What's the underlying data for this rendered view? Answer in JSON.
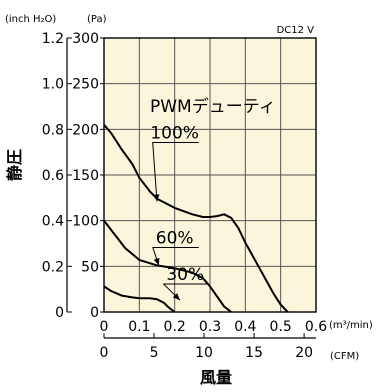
{
  "chart_data": {
    "type": "line",
    "title": "",
    "corner_label": "DC12 V",
    "xlabel": "風量",
    "ylabel": "静圧",
    "x_unit_primary": "(m³/min)",
    "x_unit_secondary": "(CFM)",
    "y_unit_primary": "(Pa)",
    "y_unit_secondary": "(inch H₂O)",
    "xlim": [
      0,
      0.6
    ],
    "ylim": [
      0,
      300
    ],
    "x_ticks_primary": [
      "0",
      "0.1",
      "0.2",
      "0.3",
      "0.4",
      "0.5",
      "0.6"
    ],
    "x_ticks_secondary": [
      "0",
      "5",
      "10",
      "15",
      "20"
    ],
    "y_ticks_primary": [
      "0",
      "50",
      "100",
      "150",
      "200",
      "250",
      "300"
    ],
    "y_ticks_secondary": [
      "0",
      "0.2",
      "0.4",
      "0.6",
      "0.8",
      "1.0",
      "1.2"
    ],
    "grid": true,
    "background_color": "#fbf6db",
    "grid_color": "#555555",
    "annotation_title": "PWMデューティ",
    "series": [
      {
        "name": "100%",
        "x": [
          0.0,
          0.02,
          0.05,
          0.08,
          0.1,
          0.13,
          0.15,
          0.2,
          0.25,
          0.28,
          0.3,
          0.32,
          0.34,
          0.36,
          0.38,
          0.4,
          0.42,
          0.44,
          0.46,
          0.48,
          0.5,
          0.52
        ],
        "y": [
          205,
          196,
          178,
          162,
          147,
          132,
          124,
          114,
          107,
          104,
          104,
          105,
          107,
          103,
          92,
          76,
          62,
          48,
          34,
          20,
          8,
          0
        ]
      },
      {
        "name": "60%",
        "x": [
          0.0,
          0.03,
          0.06,
          0.1,
          0.15,
          0.2,
          0.25,
          0.28,
          0.3,
          0.32,
          0.34,
          0.36
        ],
        "y": [
          100,
          85,
          70,
          57,
          51,
          48,
          43,
          37,
          28,
          17,
          6,
          0
        ]
      },
      {
        "name": "30%",
        "x": [
          0.0,
          0.02,
          0.05,
          0.08,
          0.1,
          0.13,
          0.15,
          0.17,
          0.18,
          0.19,
          0.2
        ],
        "y": [
          28,
          23,
          18,
          16,
          15,
          15,
          14,
          10,
          6,
          3,
          0
        ]
      }
    ],
    "labels": [
      {
        "text": "100%",
        "x": 0.2,
        "y": 190
      },
      {
        "text": "60%",
        "x": 0.2,
        "y": 75
      },
      {
        "text": "30%",
        "x": 0.23,
        "y": 35
      }
    ]
  }
}
